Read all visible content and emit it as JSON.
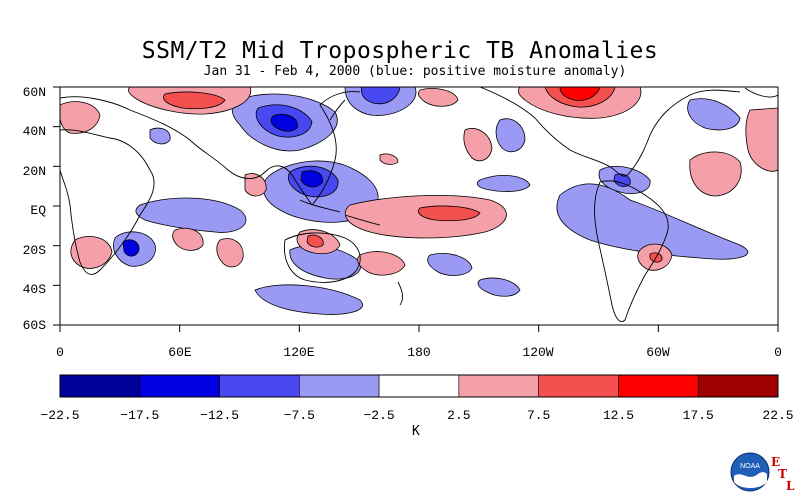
{
  "title": "SSM/T2 Mid Tropospheric TB Anomalies",
  "subtitle": "Jan 31 - Feb 4, 2000 (blue: positive moisture anomaly)",
  "map": {
    "lat_labels": [
      "60N",
      "40N",
      "20N",
      "EQ",
      "20S",
      "40S",
      "60S"
    ],
    "lon_labels": [
      "0",
      "60E",
      "120E",
      "180",
      "120W",
      "60W",
      "0"
    ]
  },
  "colorbar": {
    "unit": "K",
    "tick_labels": [
      "-22.5",
      "-17.5",
      "-12.5",
      "-7.5",
      "-2.5",
      "2.5",
      "7.5",
      "12.5",
      "17.5",
      "22.5"
    ],
    "colors": [
      "#00009a",
      "#0000e0",
      "#4848f0",
      "#9a9af5",
      "#ffffff",
      "#f5a0a8",
      "#f55050",
      "#ff0000",
      "#a00000"
    ]
  },
  "colors": {
    "neg_light": "#9a9af5",
    "neg_mid": "#4848f0",
    "neg_dark": "#0000e0",
    "pos_light": "#f5a0a8",
    "pos_mid": "#f55050",
    "pos_dark": "#ff0000"
  },
  "logo": {
    "agency": "NOAA",
    "mark": "ETL",
    "letters": [
      "E",
      "T",
      "L"
    ]
  }
}
